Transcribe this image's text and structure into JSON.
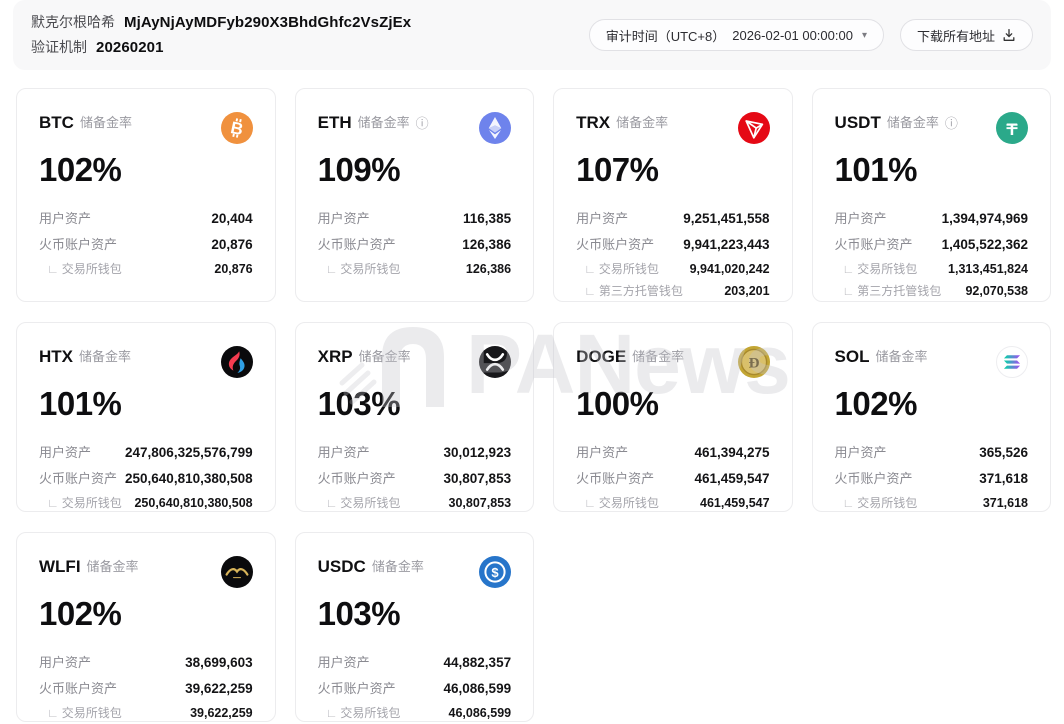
{
  "header": {
    "merkle_label": "默克尔根哈希",
    "merkle_hash": "MjAyNjAyMDFyb290X3BhdGhfc2VsZjEx",
    "mechanism_label": "验证机制",
    "mechanism_value": "20260201",
    "audit_label": "审计时间（UTC+8）",
    "audit_value": "2026-02-01 00:00:00",
    "download_label": "下载所有地址"
  },
  "watermark": {
    "text": "PANews"
  },
  "labels": {
    "reserve_rate": "储备金率",
    "user_assets": "用户资产",
    "exchange_assets": "火币账户资产",
    "exchange_wallet": "交易所钱包",
    "custody_wallet": "第三方托管钱包"
  },
  "cards": [
    {
      "symbol": "BTC",
      "rate": "102%",
      "info": false,
      "icon": "btc",
      "icon_bg": "#F0913E",
      "rows": [
        {
          "k": "user_assets",
          "v": "20,404"
        },
        {
          "k": "exchange_assets",
          "v": "20,876"
        },
        {
          "k": "exchange_wallet",
          "v": "20,876",
          "sub": true
        }
      ]
    },
    {
      "symbol": "ETH",
      "rate": "109%",
      "info": true,
      "icon": "eth",
      "icon_bg": "#6E83EC",
      "rows": [
        {
          "k": "user_assets",
          "v": "116,385"
        },
        {
          "k": "exchange_assets",
          "v": "126,386"
        },
        {
          "k": "exchange_wallet",
          "v": "126,386",
          "sub": true
        }
      ]
    },
    {
      "symbol": "TRX",
      "rate": "107%",
      "info": false,
      "icon": "trx",
      "icon_bg": "#E50915",
      "rows": [
        {
          "k": "user_assets",
          "v": "9,251,451,558"
        },
        {
          "k": "exchange_assets",
          "v": "9,941,223,443"
        },
        {
          "k": "exchange_wallet",
          "v": "9,941,020,242",
          "sub": true
        },
        {
          "k": "custody_wallet",
          "v": "203,201",
          "sub": true
        }
      ]
    },
    {
      "symbol": "USDT",
      "rate": "101%",
      "info": true,
      "icon": "usdt",
      "icon_bg": "#2BA98A",
      "rows": [
        {
          "k": "user_assets",
          "v": "1,394,974,969"
        },
        {
          "k": "exchange_assets",
          "v": "1,405,522,362"
        },
        {
          "k": "exchange_wallet",
          "v": "1,313,451,824",
          "sub": true
        },
        {
          "k": "custody_wallet",
          "v": "92,070,538",
          "sub": true
        }
      ]
    },
    {
      "symbol": "HTX",
      "rate": "101%",
      "info": false,
      "icon": "htx",
      "icon_bg": "#0a0a0c",
      "rows": [
        {
          "k": "user_assets",
          "v": "247,806,325,576,799"
        },
        {
          "k": "exchange_assets",
          "v": "250,640,810,380,508"
        },
        {
          "k": "exchange_wallet",
          "v": "250,640,810,380,508",
          "sub": true
        }
      ]
    },
    {
      "symbol": "XRP",
      "rate": "103%",
      "info": false,
      "icon": "xrp",
      "icon_bg": "#17171a",
      "rows": [
        {
          "k": "user_assets",
          "v": "30,012,923"
        },
        {
          "k": "exchange_assets",
          "v": "30,807,853"
        },
        {
          "k": "exchange_wallet",
          "v": "30,807,853",
          "sub": true
        }
      ]
    },
    {
      "symbol": "DOGE",
      "rate": "100%",
      "info": false,
      "icon": "doge",
      "icon_bg": "#C3A634",
      "rows": [
        {
          "k": "user_assets",
          "v": "461,394,275"
        },
        {
          "k": "exchange_assets",
          "v": "461,459,547"
        },
        {
          "k": "exchange_wallet",
          "v": "461,459,547",
          "sub": true
        }
      ]
    },
    {
      "symbol": "SOL",
      "rate": "102%",
      "info": false,
      "icon": "sol",
      "icon_bg": "#ffffff",
      "rows": [
        {
          "k": "user_assets",
          "v": "365,526"
        },
        {
          "k": "exchange_assets",
          "v": "371,618"
        },
        {
          "k": "exchange_wallet",
          "v": "371,618",
          "sub": true
        }
      ]
    },
    {
      "symbol": "WLFI",
      "rate": "102%",
      "info": false,
      "icon": "wlfi",
      "icon_bg": "#0a0a0c",
      "rows": [
        {
          "k": "user_assets",
          "v": "38,699,603"
        },
        {
          "k": "exchange_assets",
          "v": "39,622,259"
        },
        {
          "k": "exchange_wallet",
          "v": "39,622,259",
          "sub": true
        }
      ]
    },
    {
      "symbol": "USDC",
      "rate": "103%",
      "info": false,
      "icon": "usdc",
      "icon_bg": "#2775CA",
      "rows": [
        {
          "k": "user_assets",
          "v": "44,882,357"
        },
        {
          "k": "exchange_assets",
          "v": "46,086,599"
        },
        {
          "k": "exchange_wallet",
          "v": "46,086,599",
          "sub": true
        }
      ]
    }
  ]
}
